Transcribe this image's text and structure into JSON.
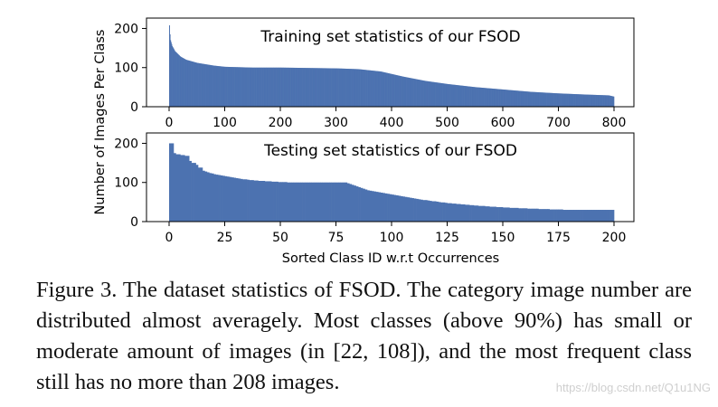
{
  "chart_data": [
    {
      "type": "bar",
      "title": "Training set statistics of our FSOD",
      "xlabel": "",
      "ylabel": "Number of Images Per Class",
      "xlim": [
        0,
        800
      ],
      "ylim": [
        0,
        208
      ],
      "xticks": [
        "0",
        "100",
        "200",
        "300",
        "400",
        "500",
        "600",
        "700",
        "800"
      ],
      "yticks": [
        "0",
        "100",
        "200"
      ],
      "color": "#4c72b0",
      "grid": false,
      "x": [
        0,
        1,
        2,
        5,
        10,
        20,
        30,
        50,
        80,
        100,
        150,
        200,
        250,
        300,
        340,
        380,
        420,
        460,
        500,
        550,
        600,
        650,
        700,
        750,
        790,
        799,
        800
      ],
      "values": [
        208,
        185,
        170,
        155,
        142,
        128,
        120,
        112,
        105,
        102,
        100,
        100,
        99,
        98,
        96,
        90,
        77,
        66,
        58,
        50,
        44,
        38,
        34,
        31,
        29,
        26,
        20
      ]
    },
    {
      "type": "bar",
      "title": "Testing set statistics of our FSOD",
      "xlabel": "Sorted Class ID w.r.t Occurrences",
      "ylabel": "",
      "xlim": [
        0,
        200
      ],
      "ylim": [
        0,
        208
      ],
      "xticks": [
        "0",
        "25",
        "50",
        "75",
        "100",
        "125",
        "150",
        "175",
        "200"
      ],
      "yticks": [
        "0",
        "100",
        "200"
      ],
      "color": "#4c72b0",
      "grid": false,
      "values": [
        200,
        200,
        175,
        172,
        172,
        170,
        170,
        168,
        168,
        155,
        150,
        150,
        145,
        138,
        138,
        130,
        128,
        126,
        124,
        123,
        121,
        120,
        119,
        118,
        117,
        116,
        115,
        114,
        113,
        112,
        111,
        110,
        109,
        108,
        108,
        107,
        106,
        106,
        105,
        105,
        104,
        104,
        104,
        103,
        103,
        103,
        102,
        102,
        102,
        101,
        101,
        101,
        101,
        100,
        100,
        100,
        100,
        100,
        100,
        100,
        100,
        100,
        100,
        100,
        100,
        100,
        100,
        100,
        100,
        100,
        100,
        100,
        100,
        100,
        100,
        100,
        100,
        100,
        100,
        100,
        98,
        96,
        94,
        92,
        90,
        88,
        86,
        84,
        82,
        80,
        79,
        78,
        77,
        76,
        75,
        74,
        73,
        72,
        71,
        70,
        69,
        68,
        67,
        66,
        65,
        64,
        63,
        62,
        61,
        60,
        59,
        58,
        57,
        56,
        55,
        55,
        54,
        53,
        52,
        52,
        51,
        50,
        49,
        49,
        48,
        47,
        47,
        46,
        46,
        45,
        45,
        44,
        44,
        43,
        43,
        42,
        42,
        41,
        41,
        40,
        40,
        40,
        39,
        39,
        38,
        38,
        38,
        37,
        37,
        37,
        36,
        36,
        36,
        35,
        35,
        35,
        35,
        34,
        34,
        34,
        34,
        33,
        33,
        33,
        33,
        33,
        32,
        32,
        32,
        32,
        32,
        31,
        31,
        31,
        31,
        31,
        31,
        30,
        30,
        30,
        30,
        30,
        30,
        30,
        30,
        30,
        30,
        30,
        30,
        30,
        30,
        30,
        30,
        30,
        30,
        30,
        30,
        30,
        30,
        30
      ]
    }
  ],
  "caption": "Figure 3. The dataset statistics of FSOD. The category image number are distributed almost averagely. Most classes (above 90%) has small or moderate amount of images (in [22, 108]), and the most frequent class still has no more than 208 images.",
  "watermark": "https://blog.csdn.net/Q1u1NG"
}
